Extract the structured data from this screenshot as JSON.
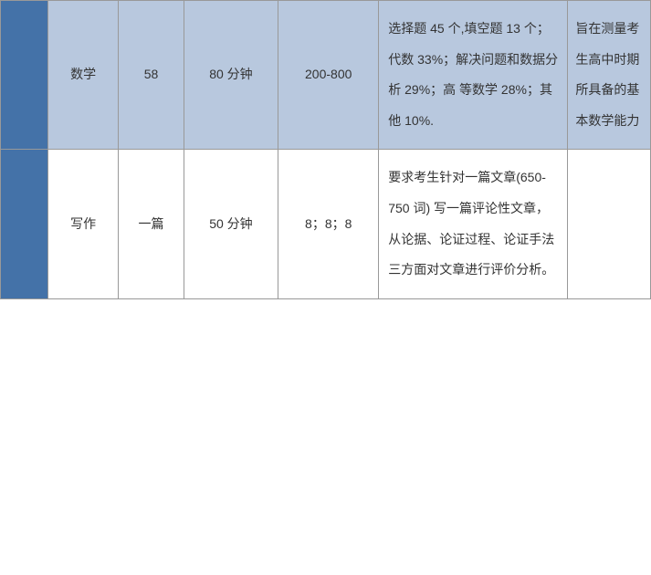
{
  "rows": [
    {
      "subject": "数学",
      "count": "58",
      "time": "80 分钟",
      "score": "200-800",
      "description": "选择题 45 个,填空题 13 个；代数 33%；解决问题和数据分析 29%；高 等数学 28%；其他 10%.",
      "purpose": "旨在测量考生高中时期\n所具备的基本数学能力"
    },
    {
      "subject": "写作",
      "count": "一篇",
      "time": "50 分钟",
      "score": "8；8；8",
      "description": "要求考生针对一篇文章(650-750 词) 写一篇评论性文章，从论据、论证过程、论证手法三方面对文章进行评价分析。",
      "purpose": ""
    }
  ],
  "styling": {
    "left_bar_color": "#4472a8",
    "blue_row_bg": "#b8c8de",
    "white_row_bg": "#ffffff",
    "border_color": "#999999",
    "text_color": "#333333",
    "font_size": 14,
    "line_height": 2.4
  }
}
